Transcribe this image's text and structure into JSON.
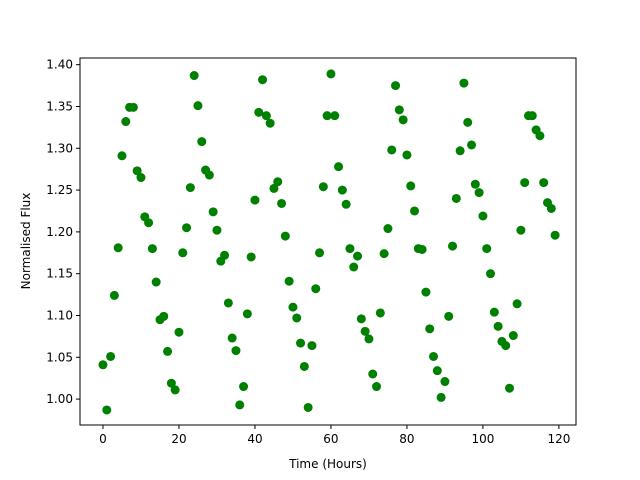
{
  "chart_data": {
    "type": "scatter",
    "xlabel": "Time (Hours)",
    "ylabel": "Normalised Flux",
    "color": "#008000",
    "x": [
      0,
      1,
      2,
      3,
      4,
      5,
      6,
      7,
      8,
      9,
      10,
      11,
      12,
      13,
      14,
      15,
      16,
      17,
      18,
      19,
      20,
      21,
      22,
      23,
      24,
      25,
      26,
      27,
      28,
      29,
      30,
      31,
      32,
      33,
      34,
      35,
      36,
      37,
      38,
      39,
      40,
      41,
      42,
      43,
      44,
      45,
      46,
      47,
      48,
      49,
      50,
      51,
      52,
      53,
      54,
      55,
      56,
      57,
      58,
      59,
      60,
      61,
      62,
      63,
      64,
      65,
      66,
      67,
      68,
      69,
      70,
      71,
      72,
      73,
      74,
      75,
      76,
      77,
      78,
      79,
      80,
      81,
      82,
      83,
      84,
      85,
      86,
      87,
      88,
      89,
      90,
      91,
      92,
      93,
      94,
      95,
      96,
      97,
      98,
      99,
      100,
      101,
      102,
      103,
      104,
      105,
      106,
      107,
      108,
      109,
      110,
      111,
      112,
      113,
      114,
      115,
      116,
      117,
      118,
      119
    ],
    "y": [
      1.041,
      0.987,
      1.051,
      1.124,
      1.181,
      1.291,
      1.332,
      1.349,
      1.349,
      1.273,
      1.265,
      1.218,
      1.211,
      1.18,
      1.14,
      1.095,
      1.099,
      1.057,
      1.019,
      1.011,
      1.08,
      1.175,
      1.205,
      1.253,
      1.387,
      1.351,
      1.308,
      1.274,
      1.268,
      1.224,
      1.202,
      1.165,
      1.172,
      1.115,
      1.073,
      1.058,
      0.993,
      1.015,
      1.102,
      1.17,
      1.238,
      1.343,
      1.382,
      1.339,
      1.33,
      1.252,
      1.26,
      1.234,
      1.195,
      1.141,
      1.11,
      1.097,
      1.067,
      1.039,
      0.99,
      1.064,
      1.132,
      1.175,
      1.254,
      1.339,
      1.389,
      1.339,
      1.278,
      1.25,
      1.233,
      1.18,
      1.158,
      1.171,
      1.096,
      1.081,
      1.072,
      1.03,
      1.015,
      1.103,
      1.174,
      1.204,
      1.298,
      1.375,
      1.346,
      1.334,
      1.292,
      1.255,
      1.225,
      1.18,
      1.179,
      1.128,
      1.084,
      1.051,
      1.034,
      1.002,
      1.021,
      1.099,
      1.183,
      1.24,
      1.297,
      1.378,
      1.331,
      1.304,
      1.257,
      1.247,
      1.219,
      1.18,
      1.15,
      1.104,
      1.087,
      1.069,
      1.064,
      1.013,
      1.076,
      1.114,
      1.202,
      1.259,
      1.339,
      1.339,
      1.322,
      1.315,
      1.259,
      1.235,
      1.228,
      1.196
    ],
    "xlim": [
      -6.05,
      124.5
    ],
    "ylim": [
      0.969,
      1.408
    ],
    "xticks": [
      0,
      20,
      40,
      60,
      80,
      100,
      120
    ],
    "yticks": [
      {
        "value": 1.0,
        "label": "1.00"
      },
      {
        "value": 1.05,
        "label": "1.05"
      },
      {
        "value": 1.1,
        "label": "1.10"
      },
      {
        "value": 1.15,
        "label": "1.15"
      },
      {
        "value": 1.2,
        "label": "1.20"
      },
      {
        "value": 1.25,
        "label": "1.25"
      },
      {
        "value": 1.3,
        "label": "1.30"
      },
      {
        "value": 1.35,
        "label": "1.35"
      },
      {
        "value": 1.4,
        "label": "1.40"
      }
    ]
  }
}
